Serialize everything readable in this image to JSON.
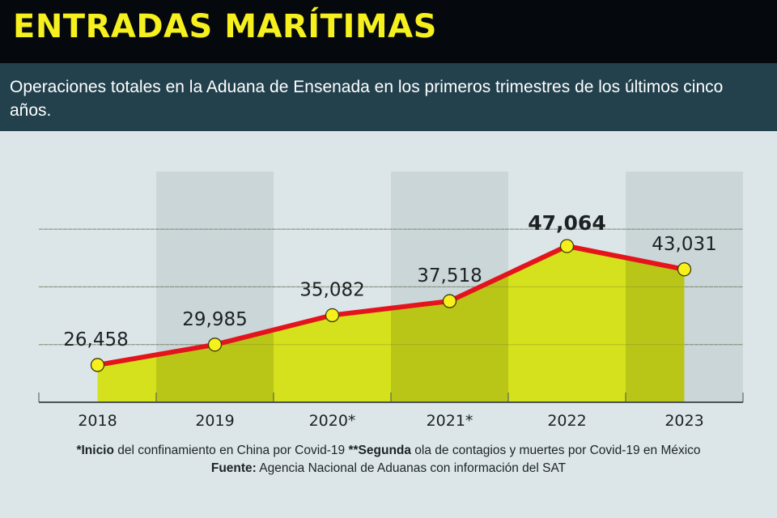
{
  "header": {
    "title": "ENTRADAS MARÍTIMAS",
    "subtitle": "Operaciones totales en la Aduana de Ensenada en los primeros trimestres de los últimos cinco años."
  },
  "colors": {
    "title_bg": "#05080c",
    "title_text": "#f5f01e",
    "subtitle_bg": "#22414d",
    "background": "#dce6e8",
    "band_shade": "#c5d0d4",
    "area_fill": "#d4e11c",
    "area_fill_shaded": "#b8c51a",
    "line": "#e4141c",
    "marker": "#f7f01a"
  },
  "chart_data": {
    "type": "area",
    "title": "Operaciones totales en la Aduana de Ensenada (primer trimestre)",
    "xlabel": "",
    "ylabel": "",
    "categories": [
      "2018",
      "2019",
      "2020*",
      "2021*",
      "2022",
      "2023"
    ],
    "series": [
      {
        "name": "Operaciones totales",
        "values": [
          26458,
          29985,
          35082,
          37518,
          47064,
          43031
        ]
      }
    ],
    "data_labels": [
      "26,458",
      "29,985",
      "35,082",
      "37,518",
      "47,064",
      "43,031"
    ],
    "highlight_index": 4,
    "ylim": [
      20000,
      53000
    ],
    "gridlines": [
      30000,
      40000,
      50000
    ],
    "grid": true,
    "legend": "none"
  },
  "footer": {
    "note1_bold": "*Inicio",
    "note1_text": " del confinamiento en China por Covid-19 ",
    "note2_bold": " **Segunda",
    "note2_text": " ola de contagios y muertes por Covid-19 en México",
    "source_bold": "Fuente:",
    "source_text": " Agencia Nacional de Aduanas con información del SAT"
  }
}
